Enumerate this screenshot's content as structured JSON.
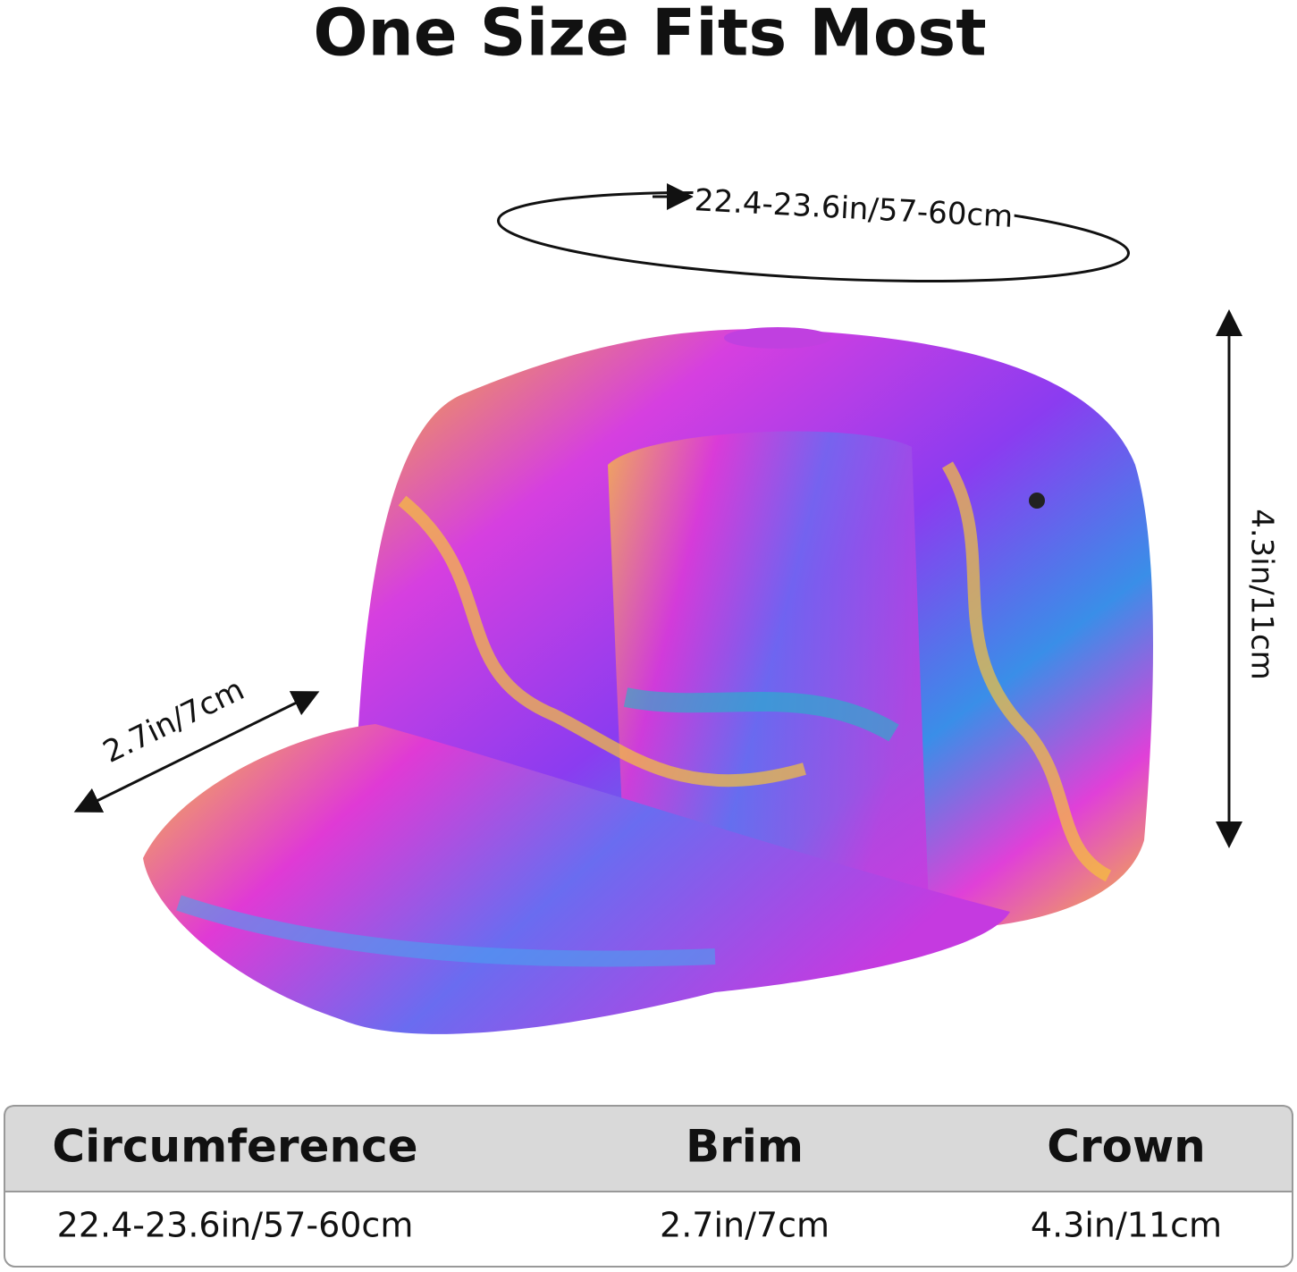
{
  "title": "One Size Fits Most",
  "dimensions": {
    "circumference": "22.4-23.6in/57-60cm",
    "brim": "2.7in/7cm",
    "crown": "4.3in/11cm"
  },
  "table": {
    "headers": [
      "Circumference",
      "Brim",
      "Crown"
    ],
    "rows": [
      [
        "22.4-23.6in/57-60cm",
        "2.7in/7cm",
        "4.3in/11cm"
      ]
    ]
  }
}
